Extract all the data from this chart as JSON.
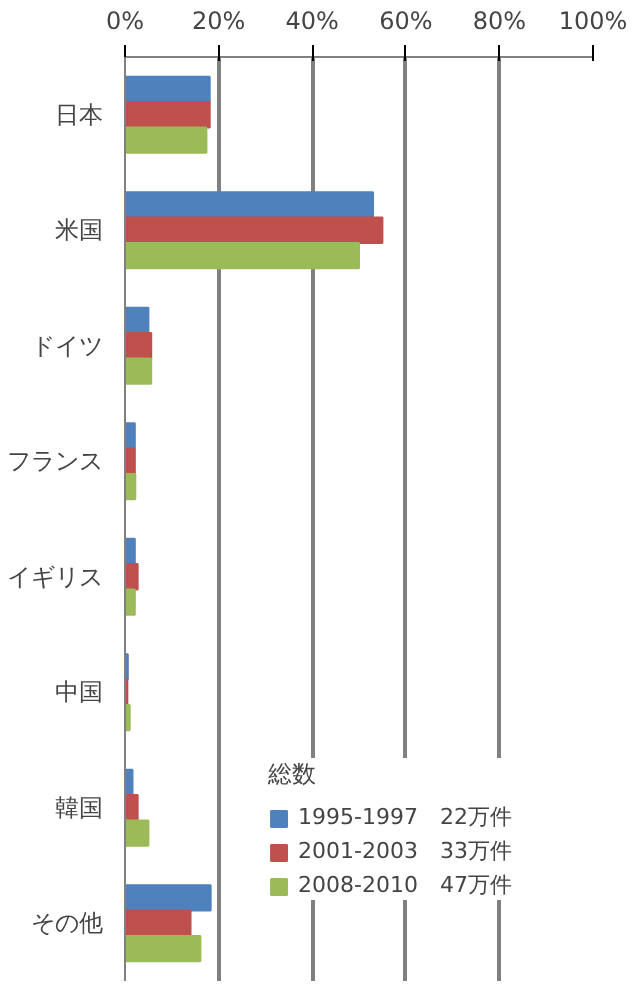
{
  "chart_data": {
    "type": "bar",
    "orientation": "horizontal",
    "categories": [
      "日本",
      "米国",
      "ドイツ",
      "フランス",
      "イギリス",
      "中国",
      "韓国",
      "その他"
    ],
    "series": [
      {
        "name": "1995-1997　22万件",
        "color": "#4f81bd",
        "values": [
          18.1,
          53,
          5,
          2.1,
          2.1,
          0.6,
          1.6,
          18.3
        ]
      },
      {
        "name": "2001-2003　33万件",
        "color": "#c0504d",
        "values": [
          18.1,
          55,
          5.6,
          2.1,
          2.7,
          0.5,
          2.7,
          14
        ]
      },
      {
        "name": "2008-2010　47万件",
        "color": "#9bbb59",
        "values": [
          17.4,
          50,
          5.6,
          2.2,
          2.1,
          1.0,
          5,
          16.1
        ]
      }
    ],
    "legend_title": "総数",
    "xlim": [
      0,
      100
    ],
    "xticks": [
      {
        "value": 0,
        "label": "0%"
      },
      {
        "value": 20,
        "label": "20%"
      },
      {
        "value": 40,
        "label": "40%"
      },
      {
        "value": 60,
        "label": "60%"
      },
      {
        "value": 80,
        "label": "80%"
      },
      {
        "value": 100,
        "label": "100%"
      }
    ],
    "grid": "x",
    "legend": "bottom right"
  }
}
